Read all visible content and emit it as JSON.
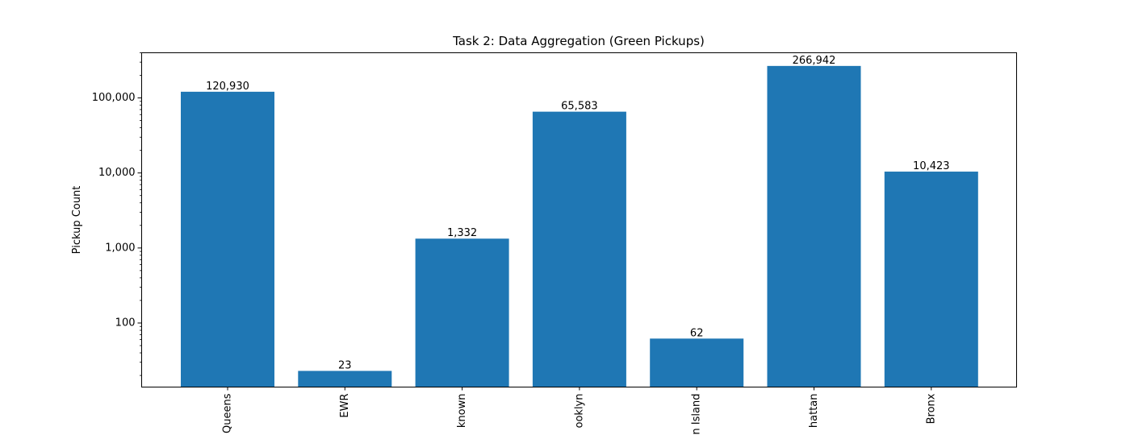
{
  "chart_data": {
    "type": "bar",
    "title": "Task 2: Data Aggregation (Green Pickups)",
    "xlabel": "",
    "ylabel": "Pickup Count",
    "yscale": "log",
    "ylim": [
      14,
      400000
    ],
    "y_ticks": [
      100,
      1000,
      10000,
      100000
    ],
    "y_tick_labels": [
      "100",
      "1,000",
      "10,000",
      "100,000"
    ],
    "categories": [
      "Queens",
      "EWR",
      "known",
      "ooklyn",
      "n Island",
      "hattan",
      "Bronx"
    ],
    "values": [
      120930,
      23,
      1332,
      65583,
      62,
      266942,
      10423
    ],
    "value_labels": [
      "120,930",
      "23",
      "1,332",
      "65,583",
      "62",
      "266,942",
      "10,423"
    ],
    "x_tick_rotation": "vertical",
    "grid": false,
    "legend": "none",
    "colors": {
      "bar": "#1f77b4",
      "axis": "#000000",
      "background": "#ffffff"
    }
  }
}
